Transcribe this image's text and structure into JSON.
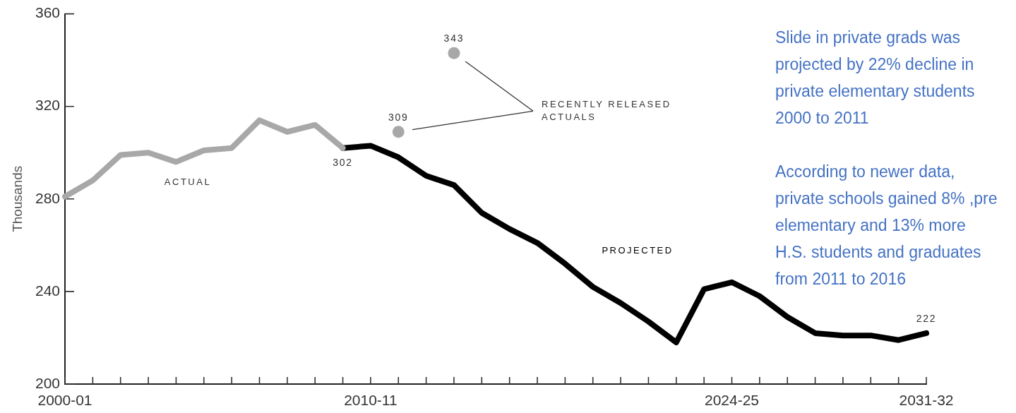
{
  "chart_data": {
    "type": "line",
    "ylabel": "Thousands",
    "categories": [
      "2000-01",
      null,
      null,
      null,
      null,
      null,
      null,
      null,
      null,
      null,
      null,
      "2010-11",
      null,
      null,
      null,
      null,
      null,
      null,
      null,
      null,
      null,
      null,
      null,
      null,
      "2024-25",
      null,
      null,
      null,
      null,
      null,
      null,
      "2031-32"
    ],
    "ylim": [
      200,
      360
    ],
    "yticks": [
      200,
      240,
      280,
      320,
      360
    ],
    "series": [
      {
        "name": "ACTUAL",
        "color": "#a8a8a8",
        "values": [
          281,
          288,
          299,
          300,
          296,
          301,
          302,
          314,
          309,
          312,
          302,
          null,
          null,
          null,
          null,
          null,
          null,
          null,
          null,
          null,
          null,
          null,
          null,
          null,
          null,
          null,
          null,
          null,
          null,
          null,
          null,
          null
        ],
        "value_labels": [
          null,
          null,
          null,
          null,
          null,
          null,
          null,
          null,
          null,
          null,
          "302",
          null,
          null,
          null,
          null,
          null,
          null,
          null,
          null,
          null,
          null,
          null,
          null,
          null,
          null,
          null,
          null,
          null,
          null,
          null,
          null,
          null
        ]
      },
      {
        "name": "PROJECTED",
        "color": "#000000",
        "values": [
          null,
          null,
          null,
          null,
          null,
          null,
          null,
          null,
          null,
          null,
          302,
          303,
          298,
          290,
          286,
          274,
          267,
          261,
          252,
          242,
          235,
          227,
          218,
          241,
          244,
          238,
          229,
          222,
          221,
          221,
          219,
          222
        ],
        "value_labels": [
          null,
          null,
          null,
          null,
          null,
          null,
          null,
          null,
          null,
          null,
          null,
          null,
          null,
          null,
          null,
          null,
          null,
          null,
          null,
          null,
          null,
          null,
          null,
          null,
          null,
          null,
          null,
          null,
          null,
          null,
          null,
          "222"
        ]
      },
      {
        "name": "RECENTLY RELEASED ACTUALS",
        "type": "scatter",
        "marker": "circle",
        "color": "#a8a8a8",
        "values": [
          null,
          null,
          null,
          null,
          null,
          null,
          null,
          null,
          null,
          null,
          null,
          null,
          309,
          null,
          343,
          null,
          null,
          null,
          null,
          null,
          null,
          null,
          null,
          null,
          null,
          null,
          null,
          null,
          null,
          null,
          null,
          null
        ],
        "value_labels": [
          null,
          null,
          null,
          null,
          null,
          null,
          null,
          null,
          null,
          null,
          null,
          null,
          "309",
          null,
          "343",
          null,
          null,
          null,
          null,
          null,
          null,
          null,
          null,
          null,
          null,
          null,
          null,
          null,
          null,
          null,
          null,
          null
        ]
      }
    ],
    "annotations": [
      "Slide in private grads was projected by 22% decline in private elementary students 2000 to 2011",
      "According to newer data, private schools gained 8% ,pre elementary and 13% more H.S. students and graduates from 2011 to 2016"
    ]
  }
}
